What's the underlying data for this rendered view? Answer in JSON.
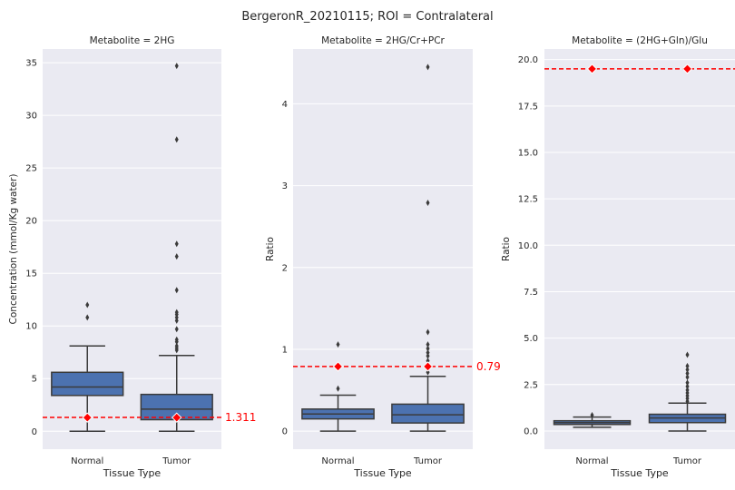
{
  "figure_title": "BergeronR_20210115; ROI = Contralateral",
  "colors": {
    "panel_bg": "#eaeaf2",
    "grid": "#ffffff",
    "box_fill": "#4c72b0",
    "box_line": "#3b3b3b",
    "mean_marker": "#ff0000",
    "reference_line": "#ff0000",
    "text": "#262626"
  },
  "chart_data": [
    {
      "type": "box",
      "title": "Metabolite =  2HG",
      "xlabel": "Tissue Type",
      "ylabel": "Concentration (mmol/Kg water)",
      "categories": [
        "Normal",
        "Tumor"
      ],
      "ylim": [
        -1.7,
        36.3
      ],
      "yticks": [
        0,
        5,
        10,
        15,
        20,
        25,
        30,
        35
      ],
      "ytick_labels": [
        "0",
        "5",
        "10",
        "15",
        "20",
        "25",
        "30",
        "35"
      ],
      "grid": true,
      "boxes": [
        {
          "category": "Normal",
          "whisker_low": 0.0,
          "q1": 3.4,
          "median": 4.2,
          "q3": 5.6,
          "whisker_high": 8.1,
          "outliers": [
            10.8,
            12.0
          ],
          "mean": 1.3
        },
        {
          "category": "Tumor",
          "whisker_low": 0.0,
          "q1": 1.1,
          "median": 2.1,
          "q3": 3.5,
          "whisker_high": 7.2,
          "outliers": [
            7.7,
            7.9,
            8.1,
            8.5,
            8.7,
            9.7,
            10.5,
            10.8,
            11.1,
            11.3,
            13.4,
            16.6,
            17.8,
            27.7,
            34.7
          ],
          "mean": 1.3
        }
      ],
      "reference_line": {
        "value": 1.311,
        "label": "1.311"
      }
    },
    {
      "type": "box",
      "title": "Metabolite =  2HG/Cr+PCr",
      "xlabel": "Tissue Type",
      "ylabel": "Ratio",
      "categories": [
        "Normal",
        "Tumor"
      ],
      "ylim": [
        -0.22,
        4.67
      ],
      "yticks": [
        0,
        1,
        2,
        3,
        4
      ],
      "ytick_labels": [
        "0",
        "1",
        "2",
        "3",
        "4"
      ],
      "grid": true,
      "boxes": [
        {
          "category": "Normal",
          "whisker_low": 0.0,
          "q1": 0.15,
          "median": 0.21,
          "q3": 0.27,
          "whisker_high": 0.44,
          "outliers": [
            0.52,
            1.06
          ],
          "mean": 0.79
        },
        {
          "category": "Tumor",
          "whisker_low": 0.0,
          "q1": 0.1,
          "median": 0.2,
          "q3": 0.33,
          "whisker_high": 0.67,
          "outliers": [
            0.72,
            0.86,
            0.92,
            0.96,
            1.01,
            1.06,
            1.21,
            2.79,
            4.45
          ],
          "mean": 0.79
        }
      ],
      "reference_line": {
        "value": 0.79,
        "label": "0.79"
      }
    },
    {
      "type": "box",
      "title": "Metabolite = (2HG+Gln)/Glu",
      "xlabel": "Tissue Type",
      "ylabel": "Ratio",
      "categories": [
        "Normal",
        "Tumor"
      ],
      "ylim": [
        -0.98,
        20.57
      ],
      "yticks": [
        0,
        2.5,
        5,
        7.5,
        10,
        12.5,
        15,
        17.5,
        20
      ],
      "ytick_labels": [
        "0.0",
        "2.5",
        "5.0",
        "7.5",
        "10.0",
        "12.5",
        "15.0",
        "17.5",
        "20.0"
      ],
      "grid": true,
      "boxes": [
        {
          "category": "Normal",
          "whisker_low": 0.2,
          "q1": 0.35,
          "median": 0.45,
          "q3": 0.55,
          "whisker_high": 0.75,
          "outliers": [
            0.85
          ],
          "mean": 19.5
        },
        {
          "category": "Tumor",
          "whisker_low": 0.0,
          "q1": 0.45,
          "median": 0.7,
          "q3": 0.9,
          "whisker_high": 1.5,
          "outliers": [
            1.6,
            1.75,
            1.9,
            2.05,
            2.2,
            2.4,
            2.6,
            2.9,
            3.1,
            3.3,
            3.5,
            4.1
          ],
          "mean": 19.5
        }
      ],
      "reference_line": {
        "value": 19.5,
        "label": "19.5"
      }
    }
  ]
}
